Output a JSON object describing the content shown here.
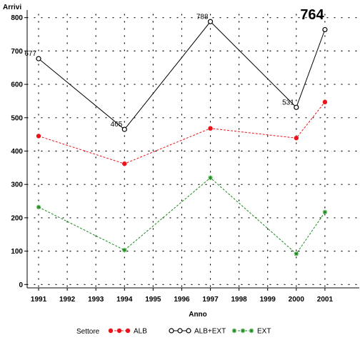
{
  "chart_data": {
    "type": "line",
    "ylabel": "Arrivi",
    "xlabel": "Anno",
    "x": [
      1991,
      1994,
      1997,
      2000,
      2001
    ],
    "x_ticks": [
      "1991",
      "1992",
      "1993",
      "1994",
      "1995",
      "1996",
      "1997",
      "1998",
      "1999",
      "2000",
      "2001"
    ],
    "y_ticks": [
      "0",
      "100",
      "200",
      "300",
      "400",
      "500",
      "600",
      "700",
      "800"
    ],
    "xlim": [
      1990.6,
      2002.2
    ],
    "ylim": [
      -10,
      810
    ],
    "grid": "dotted",
    "legend_title": "Settore",
    "legend_position": "bottom",
    "series": [
      {
        "name": "ALB",
        "values": [
          445,
          362,
          468,
          439,
          547
        ],
        "color": "#e8151b",
        "line": "dashed",
        "marker": "dot"
      },
      {
        "name": "ALB+EXT",
        "values": [
          677,
          465,
          788,
          531,
          764
        ],
        "color": "#000000",
        "line": "solid",
        "marker": "circle",
        "point_labels": [
          "677",
          "465",
          "788",
          "531",
          ""
        ]
      },
      {
        "name": "EXT",
        "values": [
          232,
          103,
          320,
          92,
          217
        ],
        "color": "#1a8a1a",
        "line": "dashed",
        "marker": "star"
      }
    ],
    "annotation": "764"
  }
}
